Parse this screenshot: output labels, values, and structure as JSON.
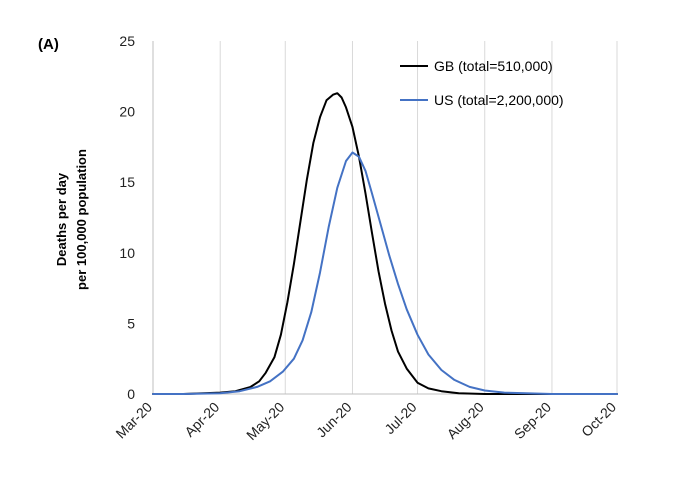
{
  "chart_data": {
    "type": "line",
    "panel_label": "(A)",
    "ylabel_lines": [
      "Deaths per day",
      "per 100,000 population"
    ],
    "xlabel": "",
    "x_ticks": [
      "Mar-20",
      "Apr-20",
      "May-20",
      "Jun-20",
      "Jul-20",
      "Aug-20",
      "Sep-20",
      "Oct-20"
    ],
    "y_ticks": [
      "0",
      "5",
      "10",
      "15",
      "20",
      "25"
    ],
    "ylim": [
      0,
      25
    ],
    "xlim": [
      "2020-03-01",
      "2020-10-01"
    ],
    "grid": "vertical",
    "legend_position": "top-right",
    "series": [
      {
        "name": "GB (total=510,000)",
        "color": "#000000",
        "x": [
          "2020-03-01",
          "2020-03-15",
          "2020-04-01",
          "2020-04-08",
          "2020-04-15",
          "2020-04-19",
          "2020-04-22",
          "2020-04-26",
          "2020-04-29",
          "2020-05-02",
          "2020-05-05",
          "2020-05-08",
          "2020-05-11",
          "2020-05-14",
          "2020-05-17",
          "2020-05-20",
          "2020-05-23",
          "2020-05-25",
          "2020-05-27",
          "2020-05-29",
          "2020-06-01",
          "2020-06-04",
          "2020-06-07",
          "2020-06-10",
          "2020-06-13",
          "2020-06-16",
          "2020-06-19",
          "2020-06-22",
          "2020-06-26",
          "2020-07-01",
          "2020-07-06",
          "2020-07-12",
          "2020-07-20",
          "2020-08-01",
          "2020-08-15",
          "2020-09-01",
          "2020-10-01"
        ],
        "values": [
          0,
          0,
          0.1,
          0.2,
          0.5,
          0.9,
          1.5,
          2.6,
          4.2,
          6.5,
          9.2,
          12.2,
          15.2,
          17.8,
          19.6,
          20.8,
          21.2,
          21.3,
          21.0,
          20.3,
          18.9,
          16.8,
          14.2,
          11.4,
          8.7,
          6.4,
          4.5,
          3.0,
          1.8,
          0.8,
          0.4,
          0.2,
          0.05,
          0,
          0,
          0,
          0
        ]
      },
      {
        "name": "US (total=2,200,000)",
        "color": "#4472C4",
        "x": [
          "2020-03-01",
          "2020-03-15",
          "2020-04-01",
          "2020-04-10",
          "2020-04-18",
          "2020-04-24",
          "2020-04-30",
          "2020-05-05",
          "2020-05-09",
          "2020-05-13",
          "2020-05-17",
          "2020-05-21",
          "2020-05-25",
          "2020-05-29",
          "2020-06-01",
          "2020-06-04",
          "2020-06-07",
          "2020-06-10",
          "2020-06-14",
          "2020-06-18",
          "2020-06-22",
          "2020-06-26",
          "2020-07-01",
          "2020-07-06",
          "2020-07-12",
          "2020-07-18",
          "2020-07-25",
          "2020-08-01",
          "2020-08-10",
          "2020-08-20",
          "2020-09-01",
          "2020-10-01"
        ],
        "values": [
          0,
          0,
          0.05,
          0.2,
          0.5,
          0.9,
          1.6,
          2.5,
          3.8,
          5.8,
          8.6,
          11.8,
          14.6,
          16.5,
          17.1,
          16.8,
          15.8,
          14.2,
          12.0,
          9.8,
          7.8,
          6.0,
          4.2,
          2.8,
          1.7,
          1.0,
          0.5,
          0.25,
          0.1,
          0.05,
          0,
          0
        ]
      }
    ]
  }
}
